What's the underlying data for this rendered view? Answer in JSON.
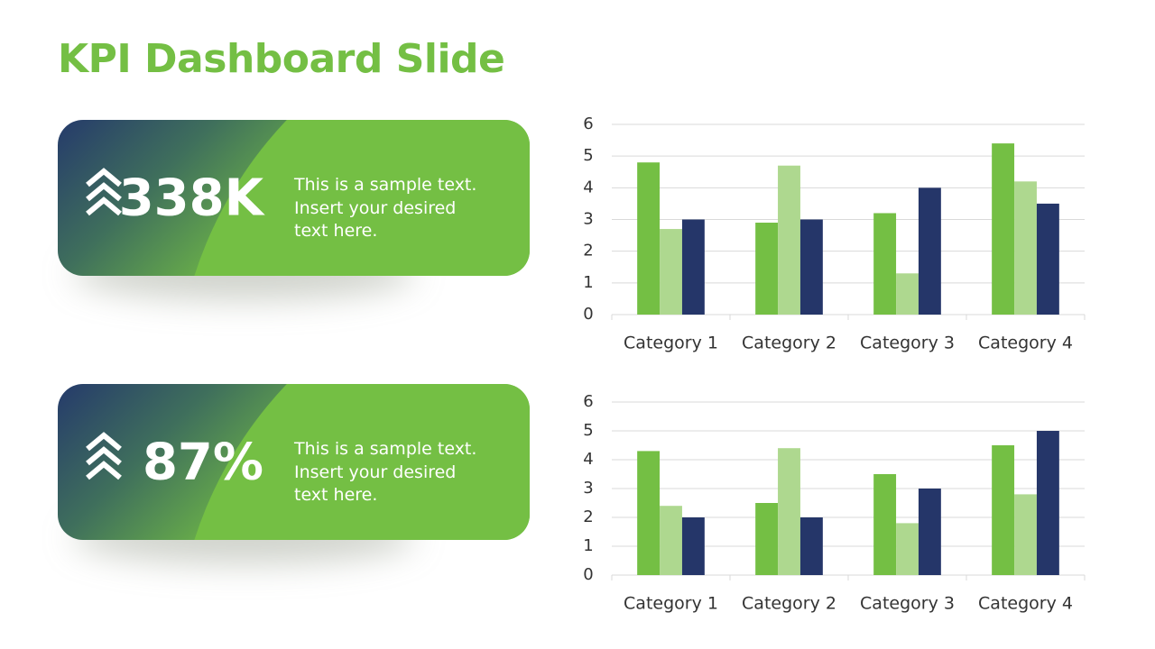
{
  "title": "KPI Dashboard Slide",
  "cards": [
    {
      "value": "338K",
      "text": [
        "This is a sample text.",
        "Insert your desired",
        "text here."
      ]
    },
    {
      "value": "87%",
      "text": [
        "This is a sample text.",
        "Insert your desired",
        "text here."
      ]
    }
  ],
  "chart_data": [
    {
      "type": "bar",
      "categories": [
        "Category 1",
        "Category 2",
        "Category 3",
        "Category 4"
      ],
      "series": [
        {
          "color": "#74bf44",
          "values": [
            4.8,
            2.9,
            3.2,
            5.4
          ]
        },
        {
          "color": "#aed88f",
          "values": [
            2.7,
            4.7,
            1.3,
            4.2
          ]
        },
        {
          "color": "#253669",
          "values": [
            3,
            3,
            4,
            3.5
          ]
        }
      ],
      "ylim": [
        0,
        6
      ],
      "yticks": [
        0,
        1,
        2,
        3,
        4,
        5,
        6
      ],
      "grid": true
    },
    {
      "type": "bar",
      "categories": [
        "Category 1",
        "Category 2",
        "Category 3",
        "Category 4"
      ],
      "series": [
        {
          "color": "#74bf44",
          "values": [
            4.3,
            2.5,
            3.5,
            4.5
          ]
        },
        {
          "color": "#aed88f",
          "values": [
            2.4,
            4.4,
            1.8,
            2.8
          ]
        },
        {
          "color": "#253669",
          "values": [
            2,
            2,
            3,
            5
          ]
        }
      ],
      "ylim": [
        0,
        6
      ],
      "yticks": [
        0,
        1,
        2,
        3,
        4,
        5,
        6
      ],
      "grid": true
    }
  ]
}
